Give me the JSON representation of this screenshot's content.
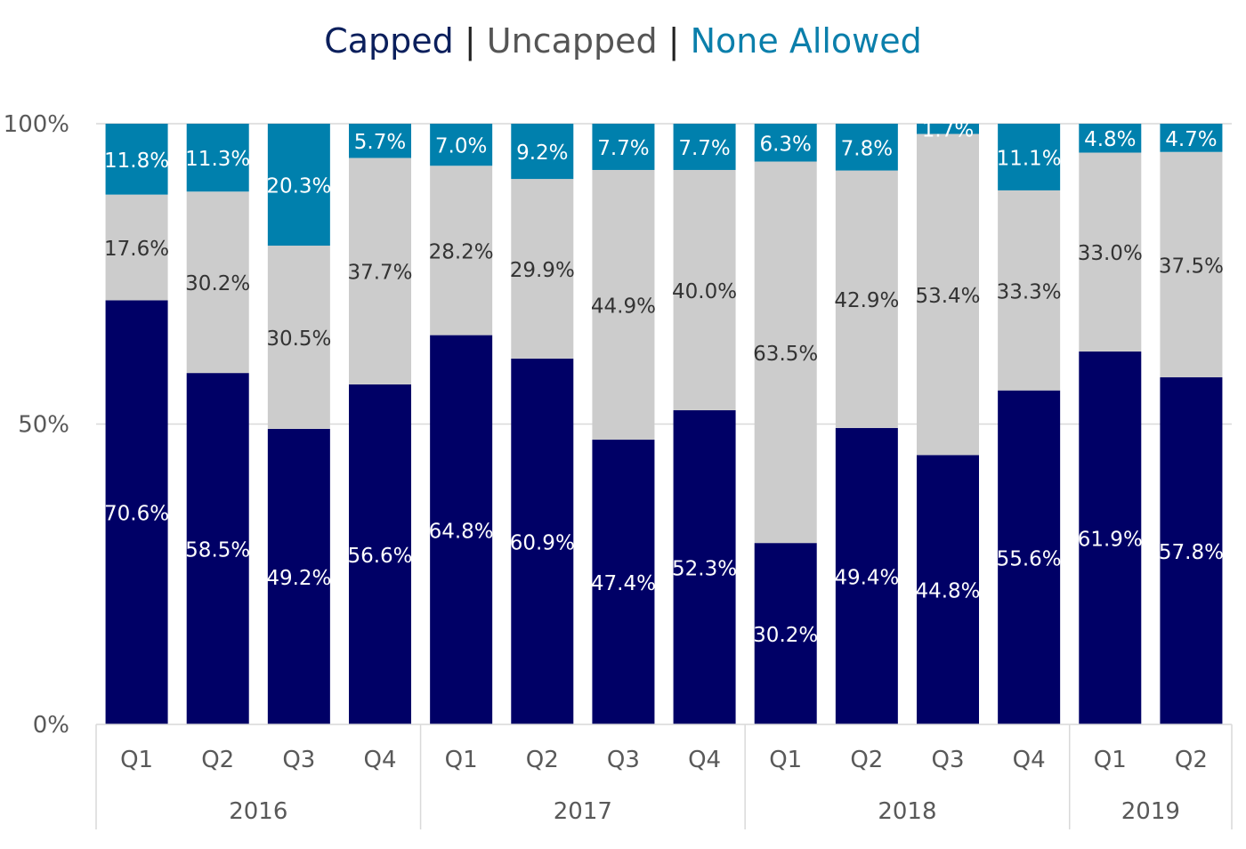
{
  "title_parts": [
    {
      "text": "Capped",
      "color": "#0b1f5c"
    },
    {
      "text": "|",
      "color": "#222222"
    },
    {
      "text": "Uncapped",
      "color": "#555555"
    },
    {
      "text": "|",
      "color": "#222222"
    },
    {
      "text": "None Allowed",
      "color": "#0b7fab"
    }
  ],
  "chart_data": {
    "type": "bar",
    "stacked": true,
    "categories": [
      "Q1",
      "Q2",
      "Q3",
      "Q4",
      "Q1",
      "Q2",
      "Q3",
      "Q4",
      "Q1",
      "Q2",
      "Q3",
      "Q4",
      "Q1",
      "Q2"
    ],
    "groups": [
      {
        "label": "2016",
        "count": 4
      },
      {
        "label": "2017",
        "count": 4
      },
      {
        "label": "2018",
        "count": 4
      },
      {
        "label": "2019",
        "count": 2
      }
    ],
    "series": [
      {
        "name": "Capped",
        "color": "#000066",
        "label_color": "#ffffff",
        "values": [
          70.6,
          58.5,
          49.2,
          56.6,
          64.8,
          60.9,
          47.4,
          52.3,
          30.2,
          49.4,
          44.8,
          55.6,
          61.9,
          57.8
        ],
        "labels": [
          "70.6%",
          "58.5%",
          "49.2%",
          "56.6%",
          "64.8%",
          "60.9%",
          "47.4%",
          "52.3%",
          "30.2%",
          "49.4%",
          "44.8%",
          "55.6%",
          "61.9%",
          "57.8%"
        ]
      },
      {
        "name": "Uncapped",
        "color": "#cccccc",
        "label_color": "#333333",
        "values": [
          17.6,
          30.2,
          30.5,
          37.7,
          28.2,
          29.9,
          44.9,
          40.0,
          63.5,
          42.9,
          53.4,
          33.3,
          33.0,
          37.5
        ],
        "labels": [
          "17.6%",
          "30.2%",
          "30.5%",
          "37.7%",
          "28.2%",
          "29.9%",
          "44.9%",
          "40.0%",
          "63.5%",
          "42.9%",
          "53.4%",
          "33.3%",
          "33.0%",
          "37.5%"
        ]
      },
      {
        "name": "None Allowed",
        "color": "#0080ad",
        "label_color": "#ffffff",
        "values": [
          11.8,
          11.3,
          20.3,
          5.7,
          7.0,
          9.2,
          7.7,
          7.7,
          6.3,
          7.8,
          1.7,
          11.1,
          4.8,
          4.7
        ],
        "labels": [
          "11.8%",
          "11.3%",
          "20.3%",
          "5.7%",
          "7.0%",
          "9.2%",
          "7.7%",
          "7.7%",
          "6.3%",
          "7.8%",
          "1.7%",
          "11.1%",
          "4.8%",
          "4.7%"
        ]
      }
    ],
    "ylim": [
      0,
      100
    ],
    "yticks": [
      0,
      50,
      100
    ],
    "ytick_labels": [
      "0%",
      "50%",
      "100%"
    ],
    "grid": true,
    "grid_color": "#d9d9d9"
  }
}
